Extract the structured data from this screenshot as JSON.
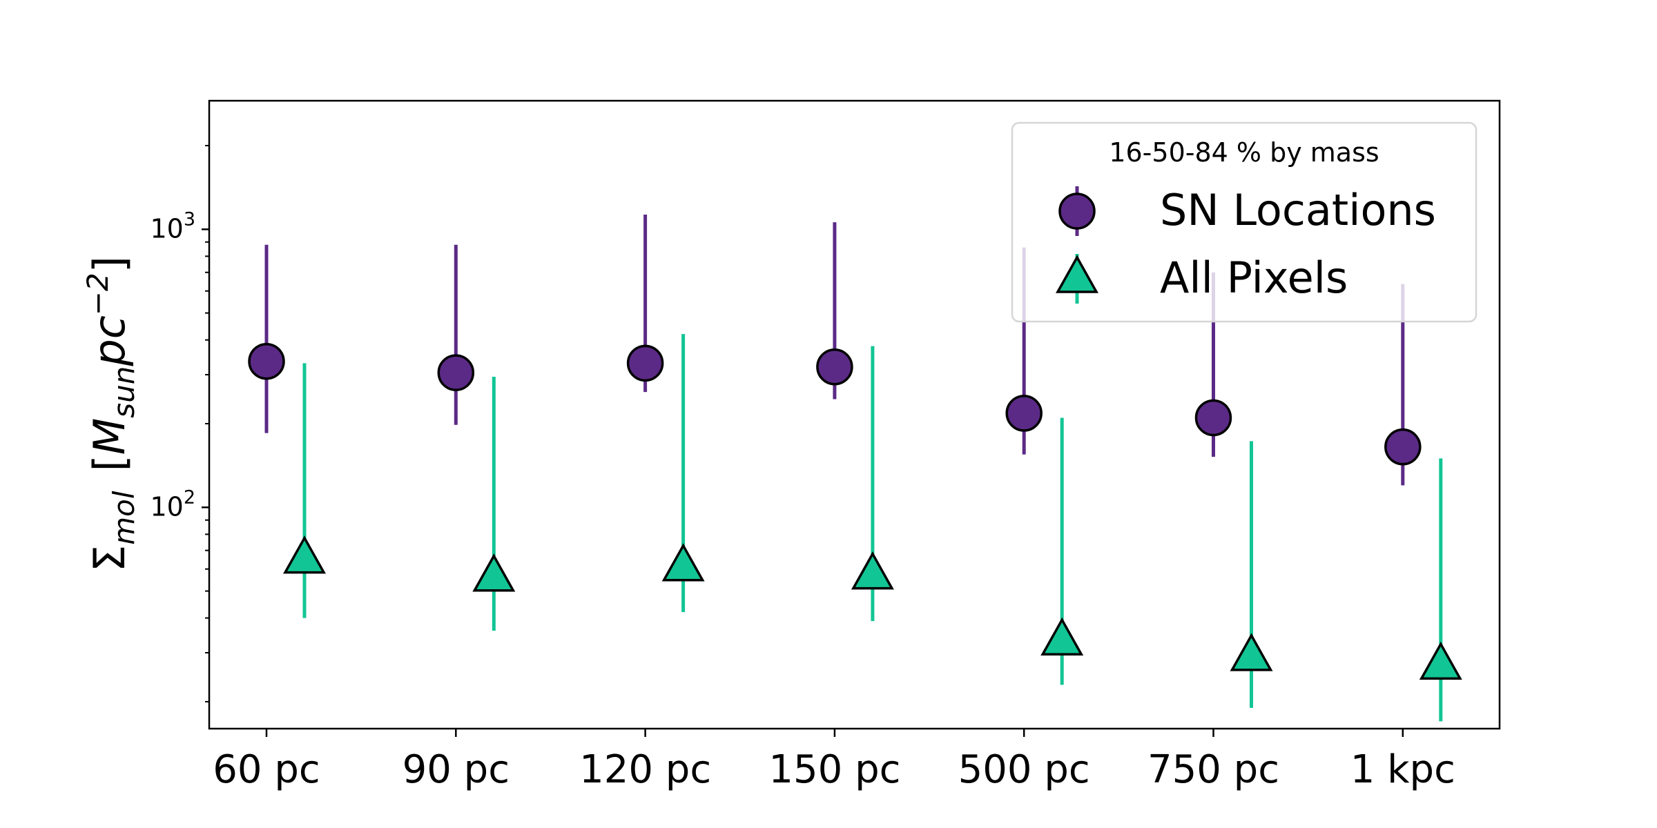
{
  "chart_data": {
    "type": "scatter",
    "title": "",
    "xlabel": "",
    "ylabel": {
      "sigma": "Σ",
      "sigma_sub": "mol",
      "unit_open": "[",
      "unit_M": "M",
      "unit_sub": "sun",
      "unit_pc": "pc",
      "unit_exp": "−2",
      "unit_close": "]"
    },
    "categories": [
      "60 pc",
      "90 pc",
      "120 pc",
      "150 pc",
      "500 pc",
      "750 pc",
      "1 kpc"
    ],
    "y_scale": "log",
    "ylim": [
      16,
      2900
    ],
    "y_ticks": [
      {
        "value": 100,
        "base": "10",
        "exp": "2"
      },
      {
        "value": 1000,
        "base": "10",
        "exp": "3"
      }
    ],
    "grid": false,
    "series": [
      {
        "name": "SN Locations",
        "marker": "circle",
        "color": "#5B2A86",
        "edge_color": "#000000",
        "median": [
          335,
          305,
          330,
          320,
          218,
          210,
          165
        ],
        "p16": [
          185,
          198,
          260,
          245,
          155,
          152,
          120
        ],
        "p84": [
          880,
          880,
          1130,
          1060,
          860,
          700,
          635
        ]
      },
      {
        "name": "All Pixels",
        "marker": "triangle",
        "color": "#12C594",
        "edge_color": "#000000",
        "median": [
          65,
          56,
          61,
          57,
          33,
          29,
          27
        ],
        "p16": [
          40,
          36,
          42,
          39,
          23,
          19,
          17
        ],
        "p84": [
          330,
          295,
          420,
          380,
          210,
          173,
          150
        ]
      }
    ],
    "legend": {
      "title": "16-50-84 % by mass",
      "placement": "top-right"
    }
  }
}
